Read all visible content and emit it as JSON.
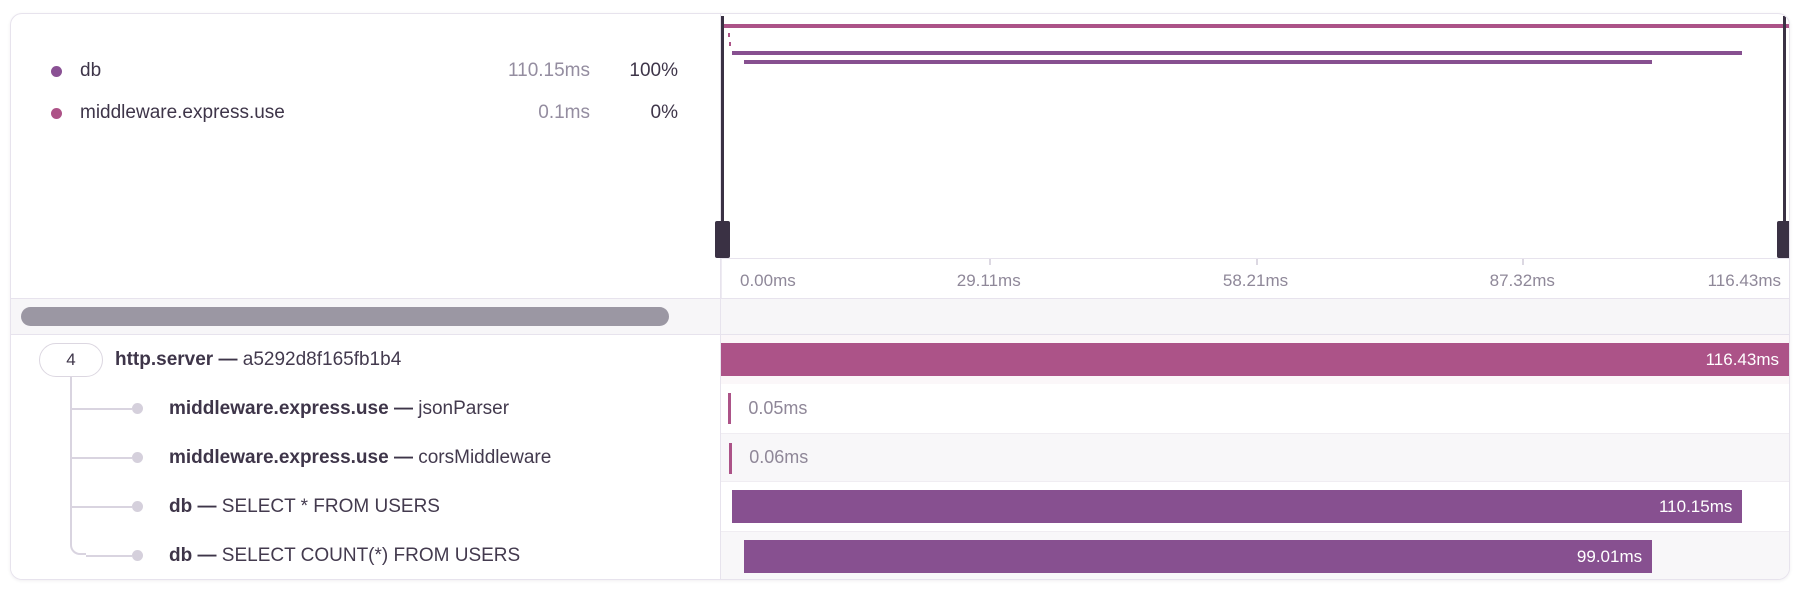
{
  "colors": {
    "pink": "#ac5388",
    "purple": "#875090",
    "legend_db_dot": "#8a5194",
    "legend_middleware_dot": "#ad5287",
    "handle_dark": "#3a3144"
  },
  "legend": {
    "items": [
      {
        "name": "db",
        "duration": "110.15ms",
        "percent": "100%",
        "color": "#8a5194"
      },
      {
        "name": "middleware.express.use",
        "duration": "0.1ms",
        "percent": "0%",
        "color": "#ad5287"
      }
    ]
  },
  "timeline": {
    "total_ms": 116.43,
    "axis_labels": [
      "0.00ms",
      "29.11ms",
      "58.21ms",
      "87.32ms",
      "116.43ms"
    ],
    "axis_tick_positions_pct": [
      25,
      50,
      75
    ]
  },
  "separator": "—",
  "spans": [
    {
      "badge": "4",
      "op": "http.server",
      "description": "a5292d8f165fb1b4",
      "duration_label": "116.43ms",
      "duration_ms": 116.43,
      "start_ms": 0,
      "color": "#ac5388",
      "label_inside": true,
      "depth": 0
    },
    {
      "op": "middleware.express.use",
      "description": "jsonParser",
      "duration_label": "0.05ms",
      "duration_ms": 0.05,
      "start_ms": 0.8,
      "color": "#ac5388",
      "label_inside": false,
      "depth": 1
    },
    {
      "op": "middleware.express.use",
      "description": "corsMiddleware",
      "duration_label": "0.06ms",
      "duration_ms": 0.06,
      "start_ms": 0.9,
      "color": "#ac5388",
      "label_inside": false,
      "depth": 1
    },
    {
      "op": "db",
      "description": "SELECT * FROM USERS",
      "duration_label": "110.15ms",
      "duration_ms": 110.15,
      "start_ms": 1.2,
      "color": "#875090",
      "label_inside": true,
      "depth": 1
    },
    {
      "op": "db",
      "description": "SELECT COUNT(*) FROM USERS",
      "duration_label": "99.01ms",
      "duration_ms": 99.01,
      "start_ms": 2.5,
      "color": "#875090",
      "label_inside": true,
      "depth": 1
    }
  ]
}
